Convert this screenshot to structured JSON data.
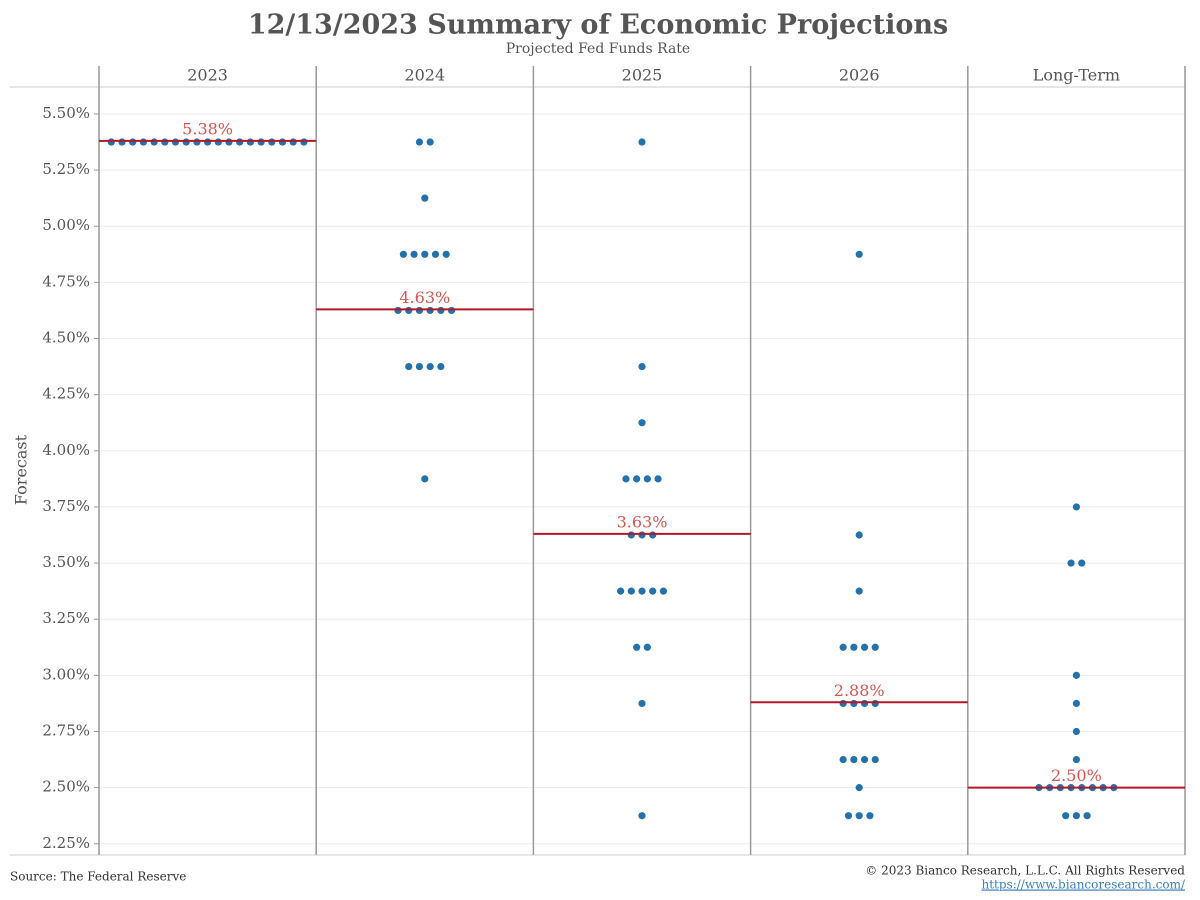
{
  "chart_data": {
    "type": "dotplot",
    "title": "12/13/2023 Summary of Economic Projections",
    "subtitle": "Projected Fed Funds Rate",
    "ylabel": "Forecast",
    "source": "Source: The Federal Reserve",
    "copyright": "© 2023 Bianco Research, L.L.C. All Rights Reserved",
    "url": "https://www.biancoresearch.com/",
    "categories": [
      "2023",
      "2024",
      "2025",
      "2026",
      "Long-Term"
    ],
    "dots": [
      [
        5.375,
        5.375,
        5.375,
        5.375,
        5.375,
        5.375,
        5.375,
        5.375,
        5.375,
        5.375,
        5.375,
        5.375,
        5.375,
        5.375,
        5.375,
        5.375,
        5.375,
        5.375,
        5.375
      ],
      [
        5.375,
        5.375,
        5.125,
        4.875,
        4.875,
        4.875,
        4.875,
        4.875,
        4.625,
        4.625,
        4.625,
        4.625,
        4.625,
        4.625,
        4.375,
        4.375,
        4.375,
        4.375,
        3.875
      ],
      [
        5.375,
        4.375,
        4.125,
        3.875,
        3.875,
        3.875,
        3.875,
        3.625,
        3.625,
        3.625,
        3.375,
        3.375,
        3.375,
        3.375,
        3.375,
        3.125,
        3.125,
        2.875,
        2.375
      ],
      [
        4.875,
        3.625,
        3.375,
        3.125,
        3.125,
        3.125,
        3.125,
        2.875,
        2.875,
        2.875,
        2.875,
        2.625,
        2.625,
        2.625,
        2.625,
        2.5,
        2.375,
        2.375,
        2.375
      ],
      [
        3.75,
        3.5,
        3.5,
        3.0,
        2.875,
        2.75,
        2.625,
        2.5,
        2.5,
        2.5,
        2.5,
        2.5,
        2.5,
        2.5,
        2.5,
        2.375,
        2.375,
        2.375
      ]
    ],
    "values": [
      5.38,
      4.63,
      3.63,
      2.88,
      2.5
    ],
    "value_labels": [
      "5.38%",
      "4.63%",
      "3.63%",
      "2.88%",
      "2.50%"
    ],
    "dot_color": "#2472ab",
    "median_color": "#b2182b",
    "median_label_color": "#d9534f",
    "ylim": [
      2.2,
      5.62
    ],
    "yticks": [
      {
        "value": 2.25,
        "label": "2.25%"
      },
      {
        "value": 2.5,
        "label": "2.50%"
      },
      {
        "value": 2.75,
        "label": "2.75%"
      },
      {
        "value": 3.0,
        "label": "3.00%"
      },
      {
        "value": 3.25,
        "label": "3.25%"
      },
      {
        "value": 3.5,
        "label": "3.50%"
      },
      {
        "value": 3.75,
        "label": "3.75%"
      },
      {
        "value": 4.0,
        "label": "4.00%"
      },
      {
        "value": 4.25,
        "label": "4.25%"
      },
      {
        "value": 4.5,
        "label": "4.50%"
      },
      {
        "value": 4.75,
        "label": "4.75%"
      },
      {
        "value": 5.0,
        "label": "5.00%"
      },
      {
        "value": 5.25,
        "label": "5.25%"
      },
      {
        "value": 5.5,
        "label": "5.50%"
      }
    ],
    "grid": true
  }
}
